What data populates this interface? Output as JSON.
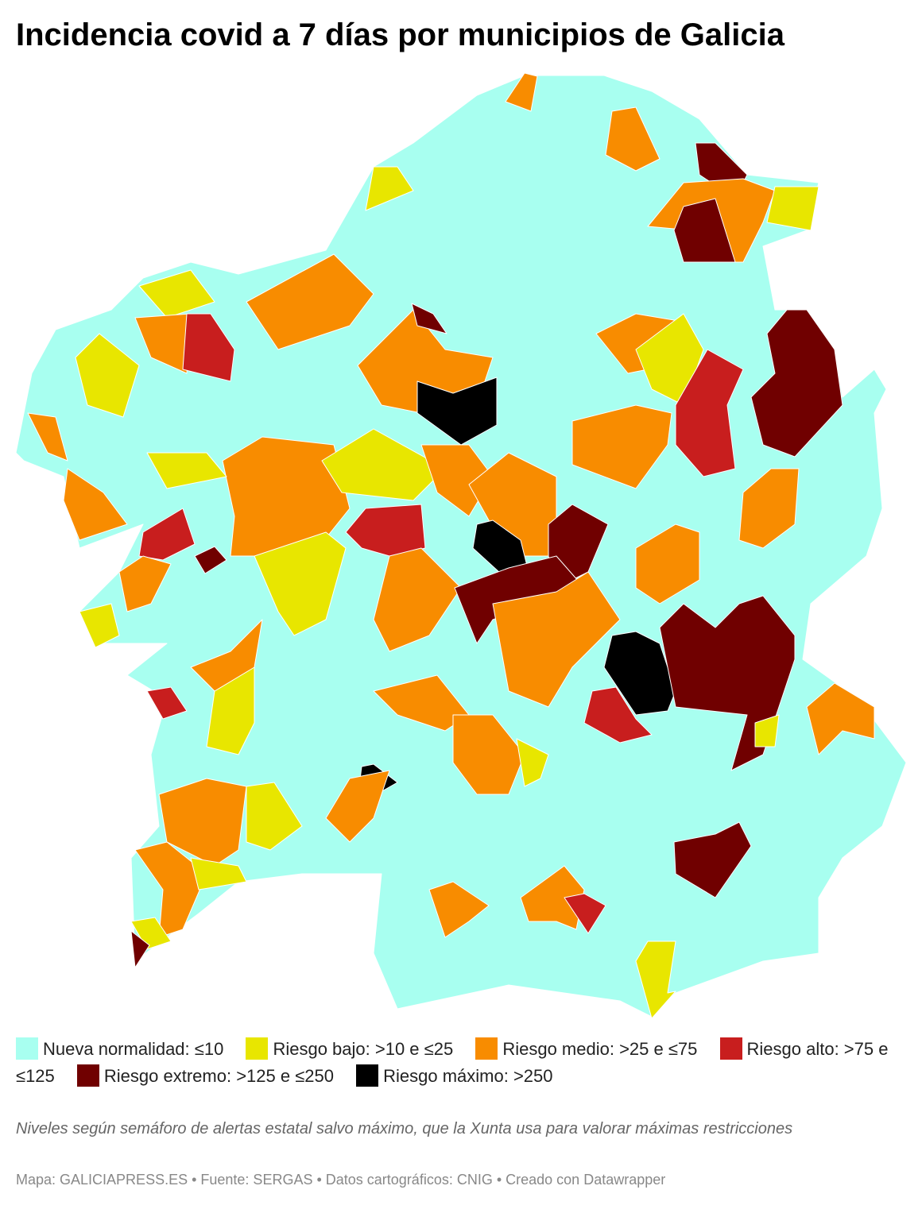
{
  "header": {
    "title": "Incidencia covid a 7 días por municipios de Galicia"
  },
  "legend": {
    "items": [
      {
        "name": "Nueva normalidad: ≤10",
        "color": "#a8fff0"
      },
      {
        "name": "Riesgo bajo: >10 e ≤25",
        "color": "#e8e600"
      },
      {
        "name": "Riesgo medio: >25 e ≤75",
        "color": "#f88c00"
      },
      {
        "name": "Riesgo alto: >75 e ≤125",
        "color": "#c81e1e"
      },
      {
        "name": "Riesgo extremo: >125 e ≤250",
        "color": "#700000"
      },
      {
        "name": "Riesgo máximo: >250",
        "color": "#000000"
      }
    ]
  },
  "footer": {
    "note": "Niveles según semáforo de alertas estatal salvo máximo, que la Xunta usa para valorar máximas restricciones",
    "source": "Mapa: GALICIAPRESS.ES • Fuente: SERGAS • Datos cartográficos: CNIG • Creado con Datawrapper"
  }
}
